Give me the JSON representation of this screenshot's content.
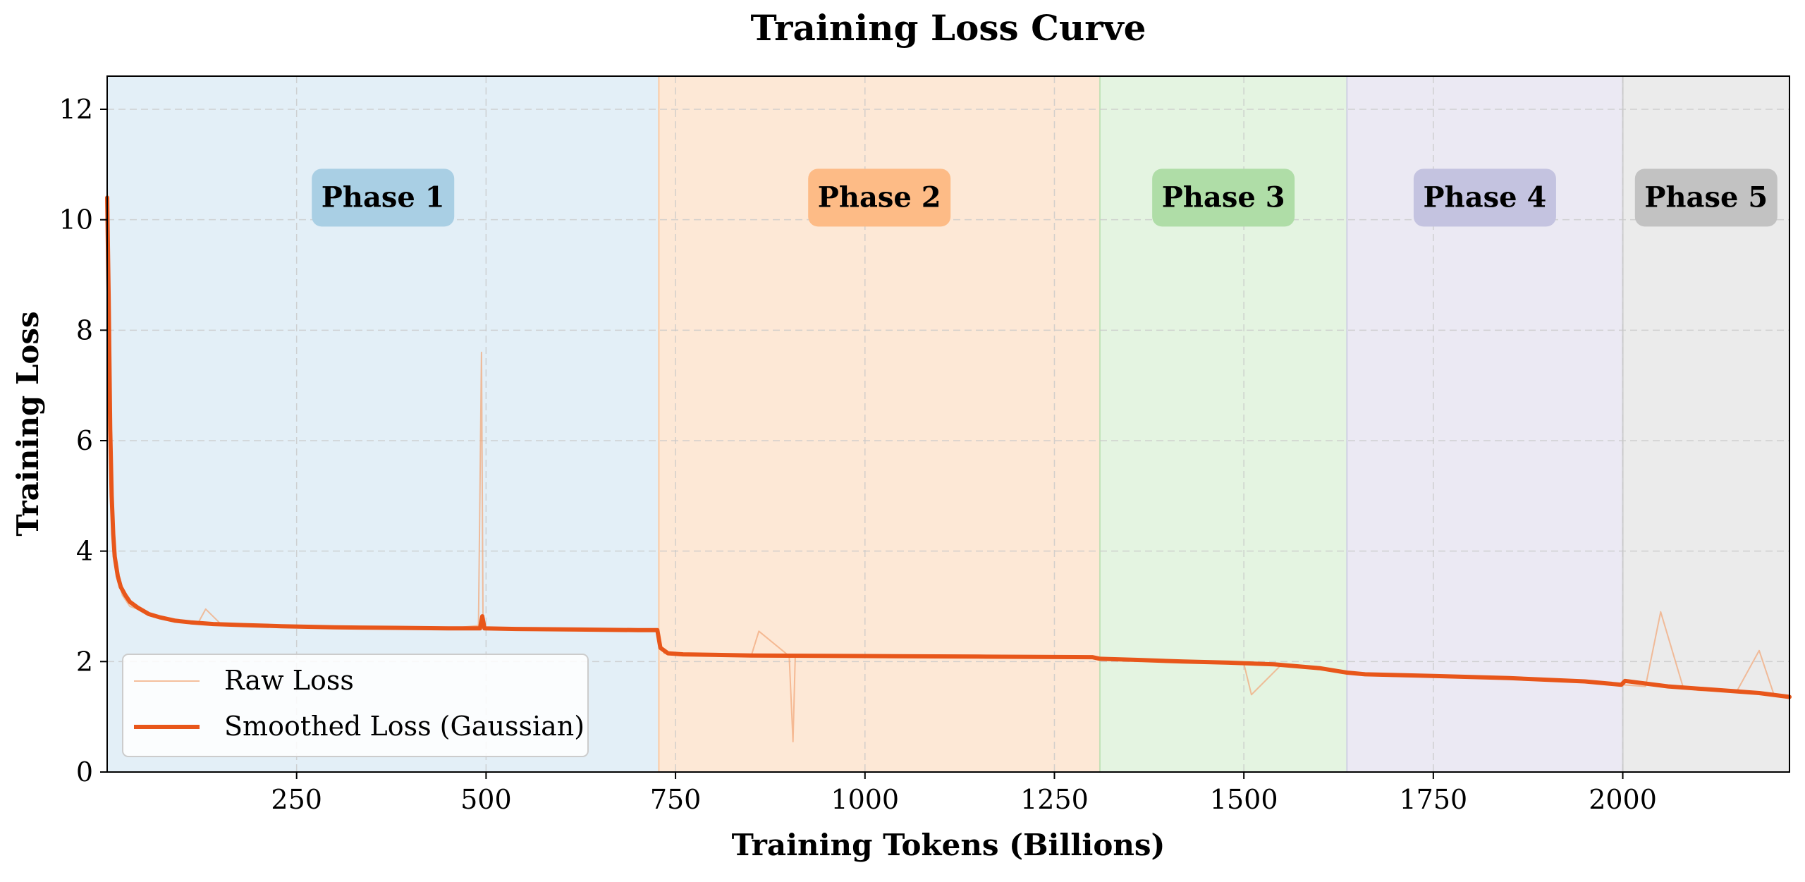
{
  "chart_data": {
    "type": "line",
    "title": "Training Loss Curve",
    "xlabel": "Training Tokens (Billions)",
    "ylabel": "Training Loss",
    "xlim": [
      0,
      2220
    ],
    "ylim": [
      0,
      12.6
    ],
    "x_ticks": [
      250,
      500,
      750,
      1000,
      1250,
      1500,
      1750,
      2000
    ],
    "y_ticks": [
      0,
      2,
      4,
      6,
      8,
      10,
      12
    ],
    "grid": true,
    "legend_position": "lower-left",
    "phases": [
      {
        "label": "Phase 1",
        "start": 0,
        "end": 728,
        "fill": "#e3eff7",
        "badge": "#a9cfe4"
      },
      {
        "label": "Phase 2",
        "start": 728,
        "end": 1310,
        "fill": "#fde8d6",
        "badge": "#fdbb86"
      },
      {
        "label": "Phase 3",
        "start": 1310,
        "end": 1636,
        "fill": "#e4f4e1",
        "badge": "#afdda7"
      },
      {
        "label": "Phase 4",
        "start": 1636,
        "end": 2000,
        "fill": "#ebe9f3",
        "badge": "#c4c3e0"
      },
      {
        "label": "Phase 5",
        "start": 2000,
        "end": 2220,
        "fill": "#ebebeb",
        "badge": "#c2c2c2"
      }
    ],
    "series": [
      {
        "name": "Raw Loss",
        "color": "#f2a97c",
        "x": [
          0,
          3,
          6,
          10,
          15,
          20,
          30,
          40,
          60,
          80,
          100,
          120,
          130,
          150,
          200,
          250,
          300,
          350,
          400,
          450,
          490,
          494,
          496,
          500,
          550,
          600,
          650,
          700,
          727,
          729,
          735,
          750,
          800,
          850,
          860,
          900,
          905,
          908,
          950,
          1000,
          1050,
          1100,
          1150,
          1200,
          1250,
          1300,
          1310,
          1350,
          1400,
          1450,
          1500,
          1510,
          1550,
          1600,
          1636,
          1650,
          1700,
          1750,
          1800,
          1850,
          1900,
          1950,
          2000,
          2030,
          2050,
          2080,
          2100,
          2150,
          2180,
          2200,
          2220
        ],
        "values": [
          10.6,
          8.5,
          5.2,
          4.0,
          3.5,
          3.2,
          3.0,
          2.95,
          2.85,
          2.75,
          2.72,
          2.7,
          2.95,
          2.68,
          2.65,
          2.63,
          2.62,
          2.61,
          2.6,
          2.6,
          2.65,
          7.6,
          2.6,
          2.6,
          2.58,
          2.57,
          2.57,
          2.56,
          2.56,
          2.3,
          2.15,
          2.14,
          2.12,
          2.11,
          2.55,
          2.1,
          0.55,
          2.1,
          2.1,
          2.1,
          2.09,
          2.09,
          2.08,
          2.08,
          2.07,
          2.06,
          2.05,
          2.02,
          2.0,
          1.98,
          1.96,
          1.4,
          1.95,
          1.88,
          1.78,
          1.76,
          1.73,
          1.72,
          1.71,
          1.7,
          1.66,
          1.62,
          1.58,
          1.55,
          2.9,
          1.52,
          1.48,
          1.45,
          2.2,
          1.38,
          1.33
        ]
      },
      {
        "name": "Smoothed Loss (Gaussian)",
        "color": "#e8561a",
        "x": [
          0,
          2,
          4,
          6,
          8,
          10,
          14,
          18,
          24,
          30,
          40,
          55,
          70,
          90,
          110,
          140,
          180,
          230,
          300,
          380,
          450,
          492,
          495,
          498,
          540,
          620,
          700,
          726,
          730,
          740,
          760,
          850,
          1000,
          1150,
          1300,
          1310,
          1360,
          1420,
          1480,
          1540,
          1600,
          1636,
          1660,
          1750,
          1850,
          1950,
          1998,
          2003,
          2060,
          2120,
          2180,
          2220
        ],
        "values": [
          10.4,
          8.6,
          6.2,
          5.0,
          4.3,
          3.9,
          3.55,
          3.35,
          3.2,
          3.08,
          2.98,
          2.86,
          2.8,
          2.74,
          2.71,
          2.68,
          2.66,
          2.64,
          2.62,
          2.61,
          2.6,
          2.6,
          2.82,
          2.6,
          2.59,
          2.58,
          2.57,
          2.57,
          2.25,
          2.15,
          2.13,
          2.11,
          2.1,
          2.09,
          2.08,
          2.05,
          2.03,
          2.0,
          1.98,
          1.95,
          1.88,
          1.8,
          1.77,
          1.74,
          1.7,
          1.64,
          1.58,
          1.65,
          1.55,
          1.49,
          1.43,
          1.36
        ]
      }
    ]
  }
}
